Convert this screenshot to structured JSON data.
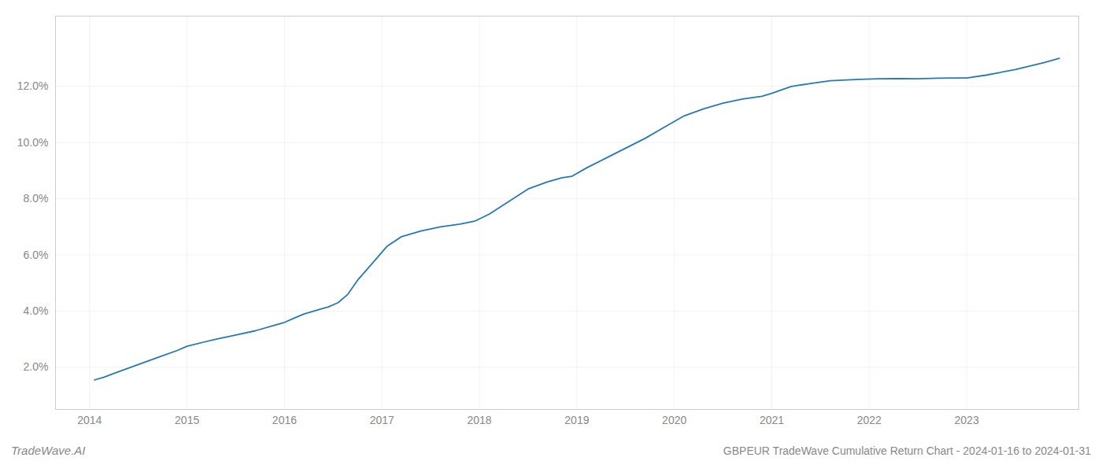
{
  "chart_data": {
    "type": "line",
    "title": "GBPEUR TradeWave Cumulative Return Chart - 2024-01-16 to 2024-01-31",
    "annotations": [
      "TradeWave.AI"
    ],
    "color": "#2778b5",
    "grid": true,
    "x": [
      2014.05,
      2014.15,
      2014.3,
      2014.5,
      2014.7,
      2014.9,
      2015.0,
      2015.15,
      2015.3,
      2015.5,
      2015.7,
      2015.9,
      2016.0,
      2016.1,
      2016.2,
      2016.35,
      2016.45,
      2016.55,
      2016.65,
      2016.75,
      2016.9,
      2017.05,
      2017.2,
      2017.4,
      2017.6,
      2017.8,
      2017.95,
      2018.1,
      2018.3,
      2018.5,
      2018.7,
      2018.85,
      2018.95,
      2019.1,
      2019.3,
      2019.5,
      2019.7,
      2019.9,
      2020.1,
      2020.3,
      2020.5,
      2020.7,
      2020.9,
      2021.0,
      2021.2,
      2021.4,
      2021.6,
      2021.9,
      2022.1,
      2022.3,
      2022.5,
      2022.7,
      2022.9,
      2023.0,
      2023.2,
      2023.5,
      2023.8,
      2023.95
    ],
    "values": [
      1.55,
      1.65,
      1.85,
      2.1,
      2.35,
      2.6,
      2.75,
      2.88,
      3.0,
      3.15,
      3.3,
      3.5,
      3.6,
      3.75,
      3.9,
      4.05,
      4.15,
      4.3,
      4.6,
      5.1,
      5.7,
      6.3,
      6.65,
      6.85,
      7.0,
      7.1,
      7.2,
      7.45,
      7.9,
      8.35,
      8.6,
      8.75,
      8.8,
      9.1,
      9.45,
      9.8,
      10.15,
      10.55,
      10.95,
      11.2,
      11.4,
      11.55,
      11.65,
      11.75,
      12.0,
      12.1,
      12.2,
      12.25,
      12.27,
      12.28,
      12.27,
      12.29,
      12.3,
      12.3,
      12.4,
      12.6,
      12.85,
      13.0
    ],
    "xlim": [
      2013.65,
      2024.15
    ],
    "xticks": [
      2014,
      2015,
      2016,
      2017,
      2018,
      2019,
      2020,
      2021,
      2022,
      2023
    ],
    "ylim": [
      0.5,
      14.5
    ],
    "yticks": [
      {
        "value": 2.0,
        "label": "2.0%"
      },
      {
        "value": 4.0,
        "label": "4.0%"
      },
      {
        "value": 6.0,
        "label": "6.0%"
      },
      {
        "value": 8.0,
        "label": "8.0%"
      },
      {
        "value": 10.0,
        "label": "10.0%"
      },
      {
        "value": 12.0,
        "label": "12.0%"
      }
    ]
  }
}
